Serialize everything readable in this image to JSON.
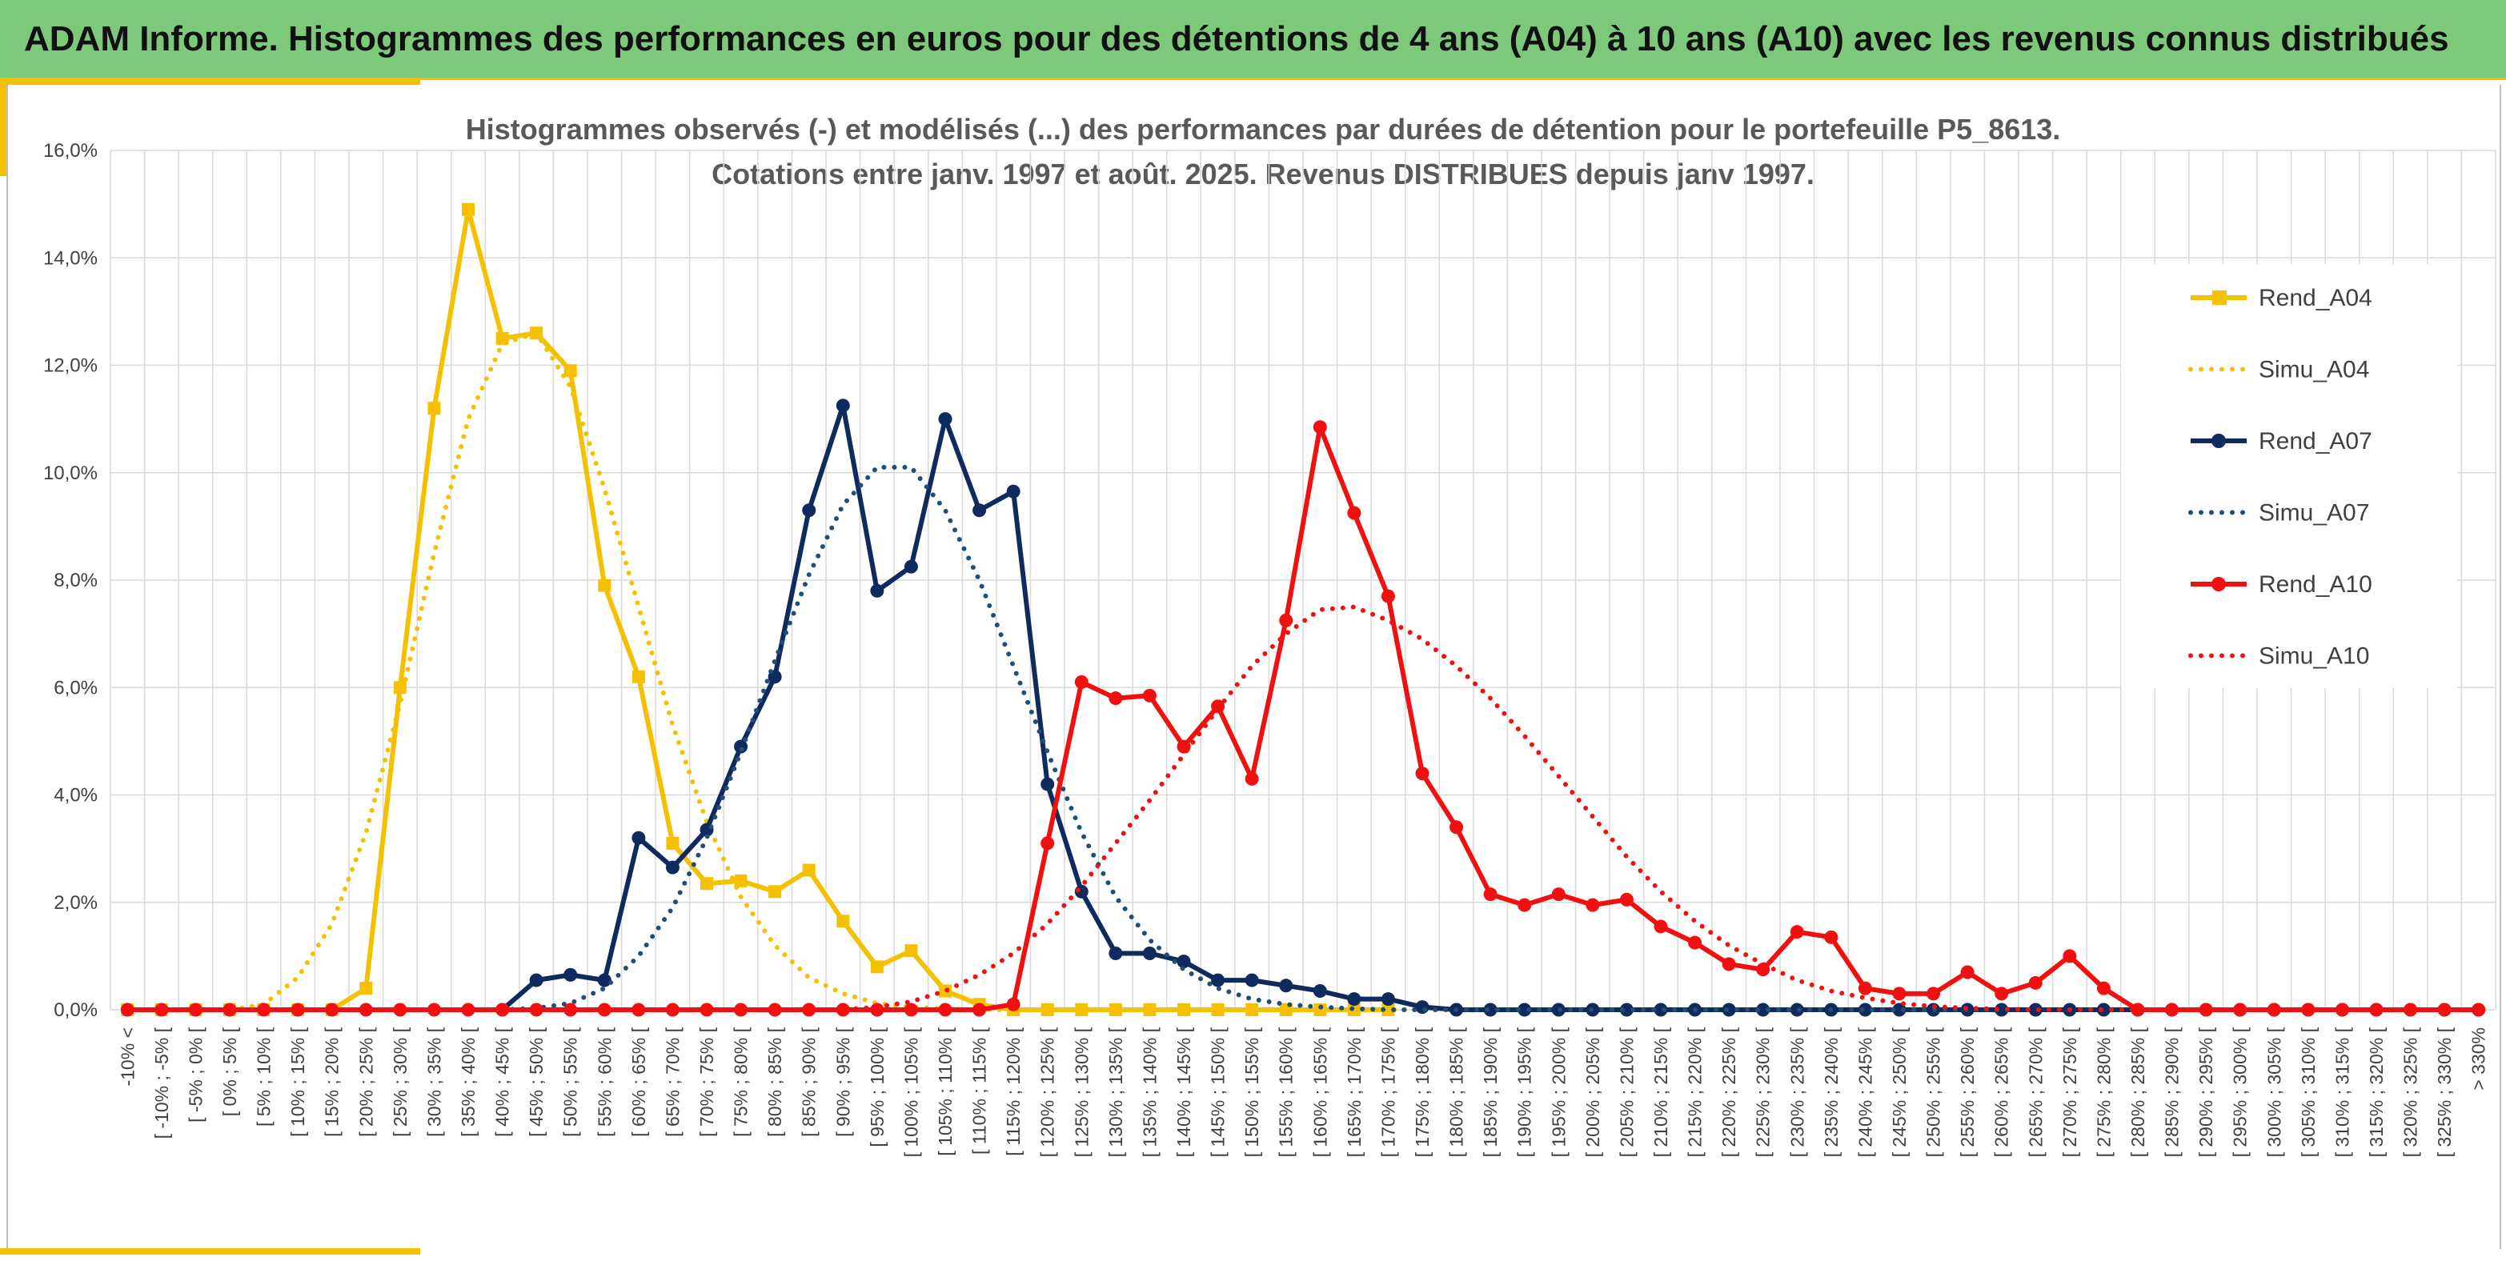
{
  "banner": {
    "title": "ADAM Informe. Histogrammes des performances en euros pour des détentions de 4 ans (A04) à 10 ans (A10) avec les revenus connus distribués"
  },
  "colors": {
    "banner_bg": "#7dc87a",
    "accent": "#f5c000",
    "a04": "#f5c000",
    "a07": "#0f2a5c",
    "a07_dotted": "#1f4e79",
    "a10": "#f01010",
    "grid": "#d9d9d9"
  },
  "chart_data": {
    "type": "line",
    "title": [
      "Histogrammes observés (-) et modélisés (...) des performances par durées de détention pour le portefeuille P5_8613.",
      "Cotations entre janv. 1997 et août. 2025. Revenus DISTRIBUES depuis janv 1997."
    ],
    "xlabel": "",
    "ylabel": "",
    "ylim": [
      0,
      16
    ],
    "y_tick_values": [
      0,
      2,
      4,
      6,
      8,
      10,
      12,
      14,
      16
    ],
    "y_tick_labels": [
      "0,0%",
      "2,0%",
      "4,0%",
      "6,0%",
      "8,0%",
      "10,0%",
      "12,0%",
      "14,0%",
      "16,0%"
    ],
    "grid": true,
    "legend_position": "right",
    "categories": [
      "-10% <",
      "[ -10% ; -5% [",
      "[ -5% ; 0% [",
      "[ 0% ; 5% [",
      "[ 5% ; 10% [",
      "[ 10% ; 15% [",
      "[ 15% ; 20% [",
      "[ 20% ; 25% [",
      "[ 25% ; 30% [",
      "[ 30% ; 35% [",
      "[ 35% ; 40% [",
      "[ 40% ; 45% [",
      "[ 45% ; 50% [",
      "[ 50% ; 55% [",
      "[ 55% ; 60% [",
      "[ 60% ; 65% [",
      "[ 65% ; 70% [",
      "[ 70% ; 75% [",
      "[ 75% ; 80% [",
      "[ 80% ; 85% [",
      "[ 85% ; 90% [",
      "[ 90% ; 95% [",
      "[ 95% ; 100% [",
      "[ 100% ; 105% [",
      "[ 105% ; 110% [",
      "[ 110% ; 115% [",
      "[ 115% ; 120% [",
      "[ 120% ; 125% [",
      "[ 125% ; 130% [",
      "[ 130% ; 135% [",
      "[ 135% ; 140% [",
      "[ 140% ; 145% [",
      "[ 145% ; 150% [",
      "[ 150% ; 155% [",
      "[ 155% ; 160% [",
      "[ 160% ; 165% [",
      "[ 165% ; 170% [",
      "[ 170% ; 175% [",
      "[ 175% ; 180% [",
      "[ 180% ; 185% [",
      "[ 185% ; 190% [",
      "[ 190% ; 195% [",
      "[ 195% ; 200% [",
      "[ 200% ; 205% [",
      "[ 205% ; 210% [",
      "[ 210% ; 215% [",
      "[ 215% ; 220% [",
      "[ 220% ; 225% [",
      "[ 225% ; 230% [",
      "[ 230% ; 235% [",
      "[ 235% ; 240% [",
      "[ 240% ; 245% [",
      "[ 245% ; 250% [",
      "[ 250% ; 255% [",
      "[ 255% ; 260% [",
      "[ 260% ; 265% [",
      "[ 265% ; 270% [",
      "[ 270% ; 275% [",
      "[ 275% ; 280% [",
      "[ 280% ; 285% [",
      "[ 285% ; 290% [",
      "[ 290% ; 295% [",
      "[ 295% ; 300% [",
      "[ 300% ; 305% [",
      "[ 305% ; 310% [",
      "[ 310% ; 315% [",
      "[ 315% ; 320% [",
      "[ 320% ; 325% [",
      "[ 325% ; 330% [",
      "> 330%"
    ],
    "series": [
      {
        "name": "Rend_A04",
        "style": "solid",
        "marker": "square",
        "color": "#f5c000",
        "values": [
          0,
          0,
          0,
          0,
          0,
          0,
          0,
          0.4,
          6.0,
          11.2,
          14.9,
          12.5,
          12.6,
          11.9,
          7.9,
          6.2,
          3.1,
          2.35,
          2.4,
          2.2,
          2.6,
          1.65,
          0.8,
          1.1,
          0.35,
          0.1,
          0,
          0,
          0,
          0,
          0,
          0,
          0,
          0,
          0,
          0,
          0,
          0,
          null,
          null,
          null,
          null,
          null,
          null,
          null,
          null,
          null,
          null,
          null,
          null,
          null,
          null,
          null,
          null,
          null,
          null,
          null,
          null,
          null,
          null,
          null,
          null,
          null,
          null,
          null,
          null,
          null,
          null,
          null,
          null
        ]
      },
      {
        "name": "Simu_A04",
        "style": "dotted",
        "marker": "none",
        "color": "#f5c000",
        "values": [
          0,
          0,
          0,
          0,
          0.1,
          0.6,
          1.6,
          3.3,
          5.7,
          8.5,
          11.0,
          12.4,
          12.6,
          11.6,
          9.7,
          7.5,
          5.3,
          3.5,
          2.1,
          1.2,
          0.6,
          0.3,
          0.12,
          0.05,
          0.02,
          0,
          0,
          0,
          0,
          0,
          0,
          0,
          0,
          0,
          0,
          0,
          0,
          0,
          0,
          0,
          0,
          0,
          0,
          0,
          0,
          0,
          0,
          0,
          0,
          0,
          0,
          0,
          0,
          0,
          0,
          0,
          0,
          0,
          0,
          0,
          0,
          0,
          0,
          0,
          0,
          0,
          0,
          0,
          0,
          0
        ]
      },
      {
        "name": "Rend_A07",
        "style": "solid",
        "marker": "circle",
        "color": "#0f2a5c",
        "values": [
          null,
          null,
          null,
          null,
          null,
          null,
          null,
          null,
          null,
          null,
          null,
          0,
          0.55,
          0.65,
          0.55,
          3.2,
          2.65,
          3.35,
          4.9,
          6.2,
          9.3,
          11.25,
          7.8,
          8.25,
          11.0,
          9.3,
          9.65,
          4.2,
          2.2,
          1.05,
          1.05,
          0.9,
          0.55,
          0.55,
          0.45,
          0.35,
          0.2,
          0.2,
          0.05,
          0,
          0,
          0,
          0,
          0,
          0,
          0,
          0,
          0,
          0,
          0,
          0,
          0,
          0,
          0,
          0,
          0,
          0,
          0,
          0,
          0,
          0,
          0,
          0,
          0,
          0,
          0,
          0,
          0,
          0,
          0
        ]
      },
      {
        "name": "Simu_A07",
        "style": "dotted",
        "marker": "none",
        "color": "#1f4e79",
        "values": [
          0,
          0,
          0,
          0,
          0,
          0,
          0,
          0,
          0,
          0,
          0,
          0,
          0.03,
          0.12,
          0.4,
          1.0,
          1.9,
          3.2,
          4.8,
          6.5,
          8.1,
          9.4,
          10.1,
          10.1,
          9.3,
          8.0,
          6.4,
          4.8,
          3.3,
          2.1,
          1.3,
          0.75,
          0.4,
          0.2,
          0.1,
          0.05,
          0.02,
          0,
          0,
          0,
          0,
          0,
          0,
          0,
          0,
          0,
          0,
          0,
          0,
          0,
          0,
          0,
          0,
          0,
          0,
          0,
          0,
          0,
          0,
          0,
          0,
          0,
          0,
          0,
          0,
          0,
          0,
          0,
          0,
          0
        ]
      },
      {
        "name": "Rend_A10",
        "style": "solid",
        "marker": "circle",
        "color": "#f01010",
        "values": [
          0,
          0,
          0,
          0,
          0,
          0,
          0,
          0,
          0,
          0,
          0,
          0,
          0,
          0,
          0,
          0,
          0,
          0,
          0,
          0,
          0,
          0,
          0,
          0,
          0,
          0,
          0.1,
          3.1,
          6.1,
          5.8,
          5.85,
          4.9,
          5.65,
          4.3,
          7.25,
          10.85,
          9.25,
          7.7,
          4.4,
          3.4,
          2.15,
          1.95,
          2.15,
          1.95,
          2.05,
          1.55,
          1.25,
          0.85,
          0.75,
          1.45,
          1.35,
          0.4,
          0.3,
          0.3,
          0.7,
          0.3,
          0.5,
          1.0,
          0.4,
          0,
          0,
          0,
          0,
          0,
          0,
          0,
          0,
          0,
          0,
          0
        ]
      },
      {
        "name": "Simu_A10",
        "style": "dotted",
        "marker": "none",
        "color": "#f01010",
        "values": [
          0,
          0,
          0,
          0,
          0,
          0,
          0,
          0,
          0,
          0,
          0,
          0,
          0,
          0,
          0,
          0,
          0,
          0,
          0,
          0,
          0,
          0,
          0.05,
          0.15,
          0.35,
          0.65,
          1.05,
          1.6,
          2.3,
          3.1,
          3.9,
          4.75,
          5.6,
          6.4,
          7.0,
          7.45,
          7.5,
          7.25,
          6.9,
          6.4,
          5.8,
          5.1,
          4.35,
          3.6,
          2.85,
          2.2,
          1.65,
          1.2,
          0.85,
          0.55,
          0.35,
          0.22,
          0.12,
          0.06,
          0.03,
          0.01,
          0,
          0,
          0,
          0,
          0,
          0,
          0,
          0,
          0,
          0,
          0,
          0,
          0,
          0
        ]
      }
    ]
  }
}
